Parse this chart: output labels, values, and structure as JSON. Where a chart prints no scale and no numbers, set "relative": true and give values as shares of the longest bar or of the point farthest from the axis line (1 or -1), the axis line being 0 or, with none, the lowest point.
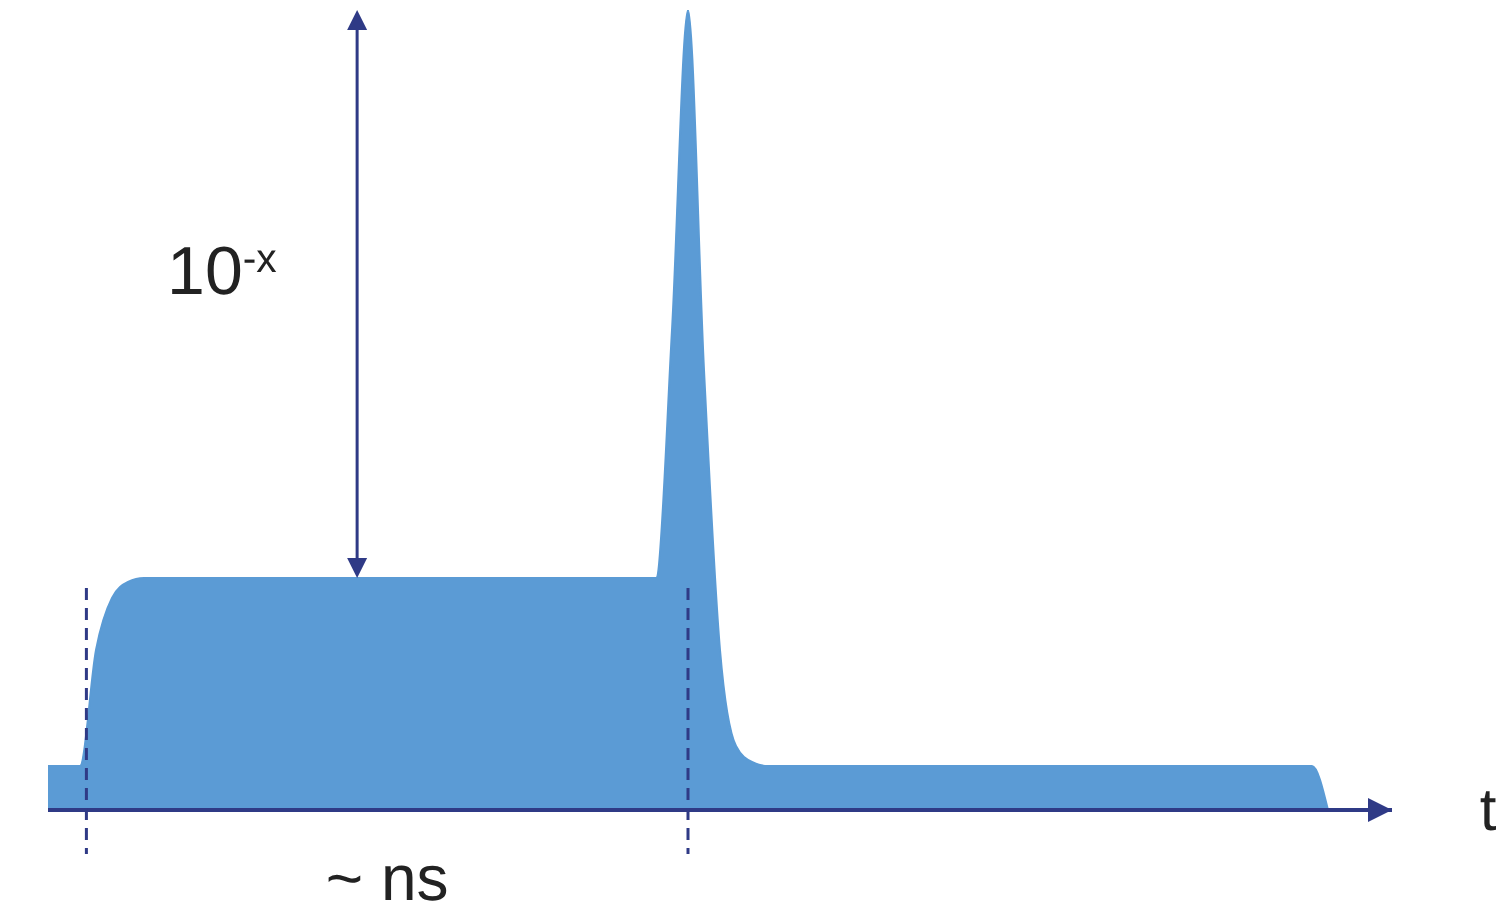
{
  "chart_data": {
    "type": "area",
    "relative": true,
    "xlabel": "t",
    "color": "#5b9bd5",
    "categories": [
      null,
      null,
      null,
      null,
      null,
      null,
      null,
      null,
      null,
      null,
      null,
      null,
      null,
      null,
      null,
      null,
      null,
      null,
      null,
      null,
      null,
      null,
      null,
      null,
      null,
      null,
      null,
      null,
      null,
      null,
      null,
      null,
      null,
      null,
      null,
      null,
      null,
      null,
      null,
      null,
      null,
      null,
      null,
      null,
      null,
      null,
      null,
      null,
      null,
      null,
      null,
      null,
      null,
      null,
      null,
      null,
      null,
      null,
      null,
      null,
      null,
      null,
      null,
      null,
      null,
      null,
      null,
      null,
      null,
      null,
      null,
      null,
      null,
      null,
      null,
      null,
      null,
      null,
      null,
      null,
      null
    ],
    "values": [
      0.055,
      0.055,
      0.055,
      0.2,
      0.265,
      0.285,
      0.29,
      0.29,
      0.29,
      0.29,
      0.29,
      0.29,
      0.29,
      0.29,
      0.29,
      0.29,
      0.29,
      0.29,
      0.29,
      0.29,
      0.29,
      0.29,
      0.29,
      0.29,
      0.29,
      0.29,
      0.29,
      0.29,
      0.29,
      0.29,
      0.29,
      0.29,
      0.29,
      0.29,
      0.29,
      0.29,
      0.29,
      0.29,
      0.29,
      0.6,
      1,
      0.55,
      0.2,
      0.08,
      0.06,
      0.055,
      0.055,
      0.055,
      0.055,
      0.055,
      0.055,
      0.055,
      0.055,
      0.055,
      0.055,
      0.055,
      0.055,
      0.055,
      0.055,
      0.055,
      0.055,
      0.055,
      0.055,
      0.055,
      0.055,
      0.055,
      0.055,
      0.055,
      0.055,
      0.055,
      0.055,
      0.055,
      0.055,
      0.055,
      0.055,
      0.055,
      0.055,
      0.055,
      0.055,
      0.055,
      0
    ],
    "annotations": [
      "10$^{-x}$",
      "~ ns"
    ]
  }
}
